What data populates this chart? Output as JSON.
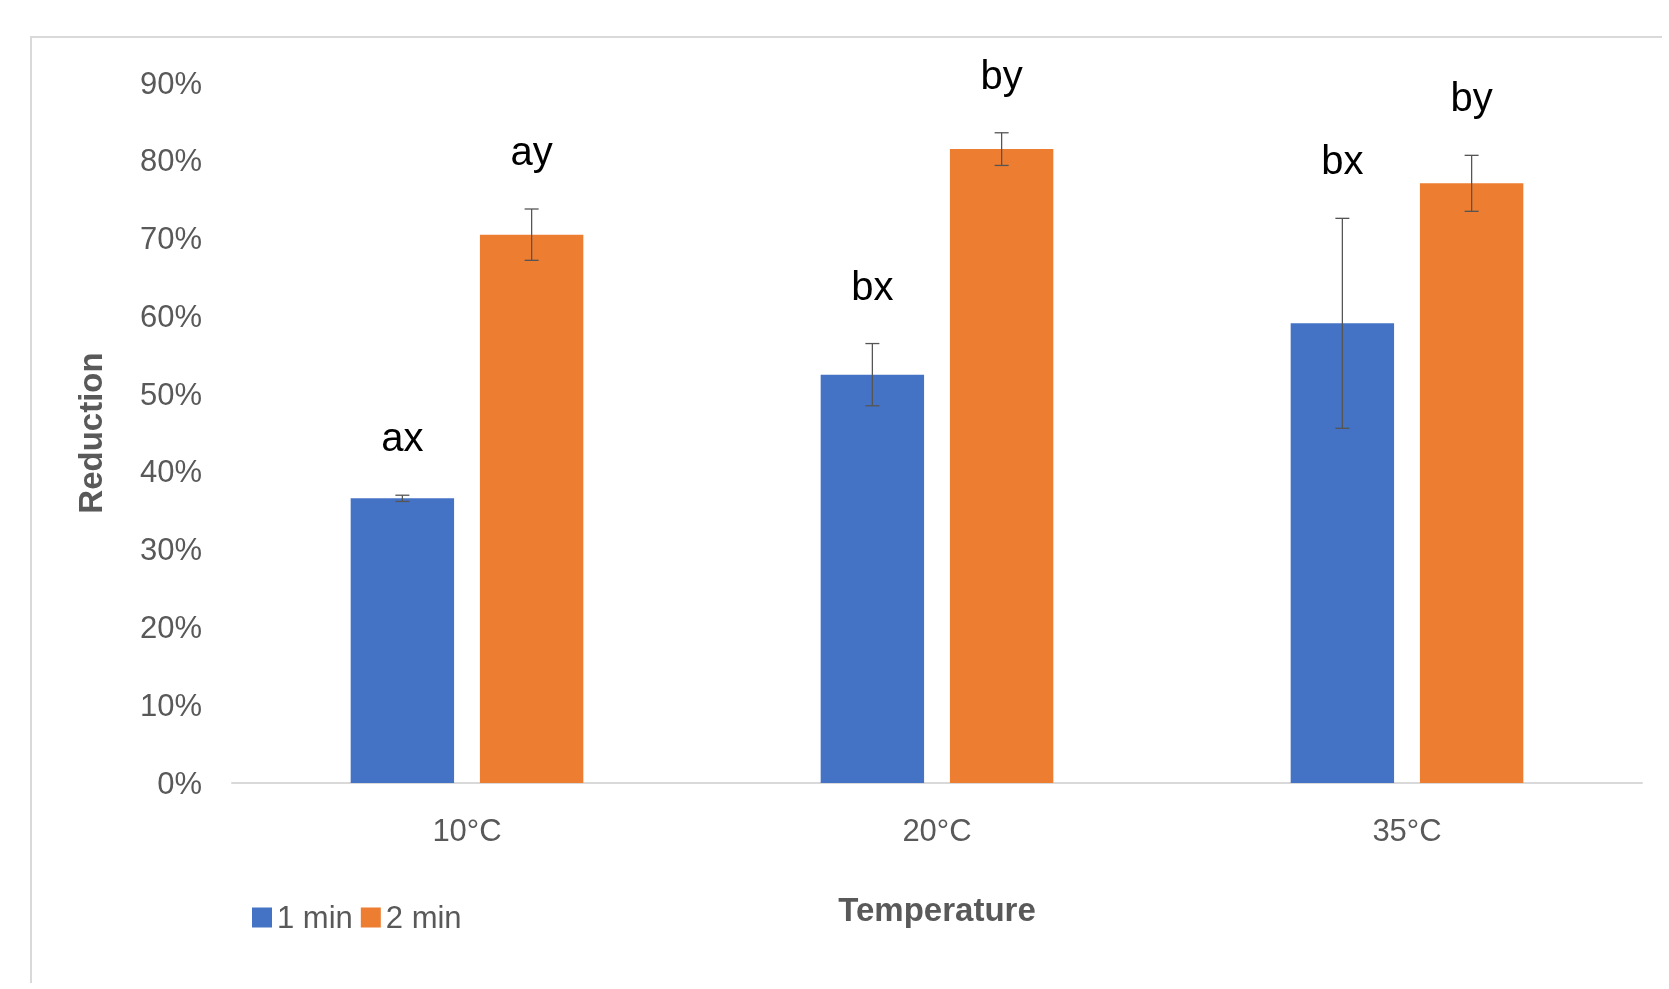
{
  "chart_data": {
    "type": "bar",
    "xlabel": "Temperature",
    "ylabel": "Reduction",
    "categories": [
      "10°C",
      "20°C",
      "35°C"
    ],
    "series": [
      {
        "name": "1 min",
        "color": "#4472c4",
        "values": [
          36.6,
          52.5,
          59.1
        ],
        "errors": [
          0.4,
          4.0,
          13.5
        ]
      },
      {
        "name": "2 min",
        "color": "#ed7d31",
        "values": [
          70.5,
          81.5,
          77.1
        ],
        "errors": [
          3.3,
          2.1,
          3.6
        ]
      }
    ],
    "ylim": [
      0,
      90
    ],
    "yticks": [
      {
        "value": 0,
        "label": "0%"
      },
      {
        "value": 10,
        "label": "10%"
      },
      {
        "value": 20,
        "label": "20%"
      },
      {
        "value": 30,
        "label": "30%"
      },
      {
        "value": 40,
        "label": "40%"
      },
      {
        "value": 50,
        "label": "50%"
      },
      {
        "value": 60,
        "label": "60%"
      },
      {
        "value": 70,
        "label": "70%"
      },
      {
        "value": 80,
        "label": "80%"
      },
      {
        "value": 90,
        "label": "90%"
      }
    ],
    "grid": false,
    "legend": "bottom left",
    "annotations": [
      "ax",
      "ay",
      "bx",
      "by",
      "bx",
      "by"
    ]
  }
}
